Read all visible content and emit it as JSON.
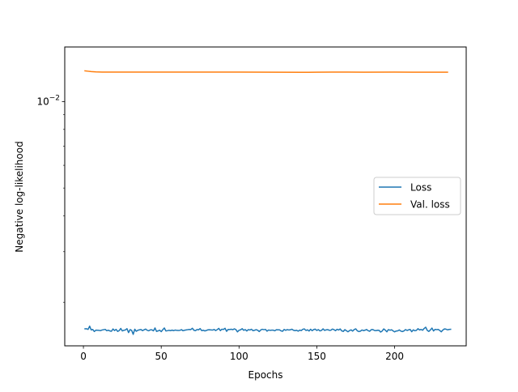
{
  "chart_data": {
    "type": "line",
    "xlabel": "Epochs",
    "ylabel": "Negative log-likelihood",
    "yscale": "log",
    "xlim": [
      -12,
      246
    ],
    "ylim": [
      0.00141,
      0.0155
    ],
    "x_ticks": [
      0,
      50,
      100,
      150,
      200
    ],
    "x_tick_labels": [
      "0",
      "50",
      "100",
      "150",
      "200"
    ],
    "y_major_ticks": [
      0.01
    ],
    "y_tick_labels": [
      "10^-2"
    ],
    "y_minor_ticks": [
      0.002,
      0.003,
      0.004,
      0.005,
      0.006,
      0.007,
      0.008,
      0.009
    ],
    "grid": false,
    "legend": {
      "placement": "center-right",
      "entries": [
        "Loss",
        "Val. loss"
      ]
    },
    "series": [
      {
        "name": "Loss",
        "color": "#1f77b4",
        "x_start": 1,
        "x_step": 1,
        "values": [
          0.001616,
          0.001617,
          0.001609,
          0.001651,
          0.001602,
          0.001608,
          0.001582,
          0.001599,
          0.001598,
          0.001596,
          0.001593,
          0.001601,
          0.001605,
          0.001609,
          0.001592,
          0.001598,
          0.001589,
          0.001585,
          0.001614,
          0.001594,
          0.001609,
          0.001583,
          0.001594,
          0.001621,
          0.001589,
          0.001597,
          0.001602,
          0.001618,
          0.001568,
          0.001606,
          0.001596,
          0.001546,
          0.001611,
          0.001585,
          0.001598,
          0.001603,
          0.001607,
          0.001593,
          0.001604,
          0.001613,
          0.001597,
          0.001591,
          0.001603,
          0.001603,
          0.00159,
          0.001627,
          0.001583,
          0.00159,
          0.001599,
          0.00158,
          0.001605,
          0.001627,
          0.001589,
          0.001592,
          0.001597,
          0.001593,
          0.001599,
          0.001593,
          0.0016,
          0.001596,
          0.001595,
          0.001597,
          0.001605,
          0.001592,
          0.001598,
          0.001602,
          0.001605,
          0.001608,
          0.001606,
          0.001624,
          0.001598,
          0.001592,
          0.001607,
          0.001603,
          0.001619,
          0.001593,
          0.001598,
          0.001589,
          0.001595,
          0.001603,
          0.001604,
          0.001602,
          0.0016,
          0.001608,
          0.001594,
          0.001606,
          0.001622,
          0.001593,
          0.001611,
          0.001608,
          0.001623,
          0.001584,
          0.001608,
          0.001607,
          0.001611,
          0.001605,
          0.001616,
          0.001606,
          0.001577,
          0.001598,
          0.001603,
          0.001618,
          0.001597,
          0.001606,
          0.001588,
          0.001606,
          0.001601,
          0.001611,
          0.001592,
          0.001598,
          0.001605,
          0.001598,
          0.001581,
          0.001602,
          0.00161,
          0.001605,
          0.001609,
          0.001586,
          0.001601,
          0.001597,
          0.001599,
          0.001599,
          0.001591,
          0.001604,
          0.001603,
          0.001603,
          0.00159,
          0.001585,
          0.001608,
          0.001597,
          0.001606,
          0.001601,
          0.001604,
          0.001611,
          0.001598,
          0.001593,
          0.001598,
          0.001586,
          0.001599,
          0.001594,
          0.00161,
          0.001615,
          0.001595,
          0.001603,
          0.001588,
          0.001611,
          0.001592,
          0.001607,
          0.001612,
          0.001595,
          0.001606,
          0.001589,
          0.001596,
          0.001616,
          0.001596,
          0.001603,
          0.001606,
          0.001597,
          0.001598,
          0.001613,
          0.001606,
          0.001592,
          0.00161,
          0.001601,
          0.001615,
          0.00159,
          0.001583,
          0.001605,
          0.001592,
          0.001578,
          0.001593,
          0.001603,
          0.001587,
          0.001606,
          0.001616,
          0.001591,
          0.001581,
          0.001586,
          0.001601,
          0.001593,
          0.001599,
          0.001607,
          0.001592,
          0.001585,
          0.001606,
          0.001607,
          0.001595,
          0.001593,
          0.001598,
          0.001597,
          0.001575,
          0.001588,
          0.001615,
          0.001599,
          0.001578,
          0.001606,
          0.001598,
          0.001604,
          0.00159,
          0.001577,
          0.001588,
          0.00159,
          0.001602,
          0.001587,
          0.001581,
          0.001589,
          0.001606,
          0.001595,
          0.001603,
          0.001608,
          0.001579,
          0.001603,
          0.001591,
          0.001596,
          0.001618,
          0.001602,
          0.001608,
          0.001598,
          0.001621,
          0.001637,
          0.001595,
          0.001583,
          0.001602,
          0.001626,
          0.001589,
          0.001609,
          0.001606,
          0.001608,
          0.001595,
          0.001578,
          0.001601,
          0.001615,
          0.001612,
          0.001603,
          0.001608,
          0.00161
        ]
      },
      {
        "name": "Val. loss",
        "color": "#ff7f0e",
        "x": [
          1,
          3,
          5,
          8,
          12,
          20,
          40,
          60,
          80,
          100,
          120,
          140,
          150,
          160,
          170,
          180,
          200,
          220,
          234
        ],
        "values": [
          0.0128,
          0.01276,
          0.01272,
          0.01269,
          0.01267,
          0.01267,
          0.01267,
          0.01267,
          0.01267,
          0.01267,
          0.01266,
          0.01265,
          0.01266,
          0.01267,
          0.01267,
          0.01266,
          0.01267,
          0.01266,
          0.01266
        ]
      }
    ]
  }
}
